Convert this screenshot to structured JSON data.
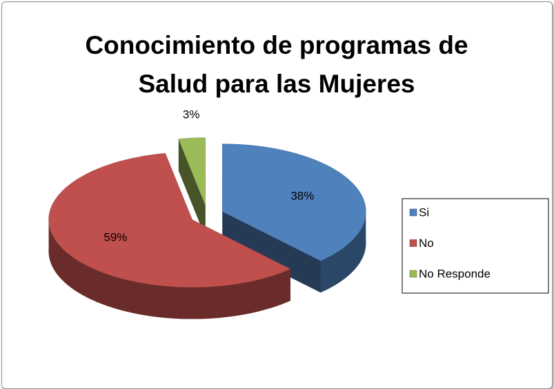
{
  "chart_data": {
    "type": "pie",
    "title": "Conocimiento de programas de Salud para las Mujeres",
    "categories": [
      "Si",
      "No",
      "No Responde"
    ],
    "values": [
      38,
      59,
      3
    ],
    "value_labels": [
      "38%",
      "59%",
      "3%"
    ],
    "colors": [
      "#4f81bd",
      "#c0504d",
      "#9bbb59"
    ],
    "legend": "right"
  }
}
